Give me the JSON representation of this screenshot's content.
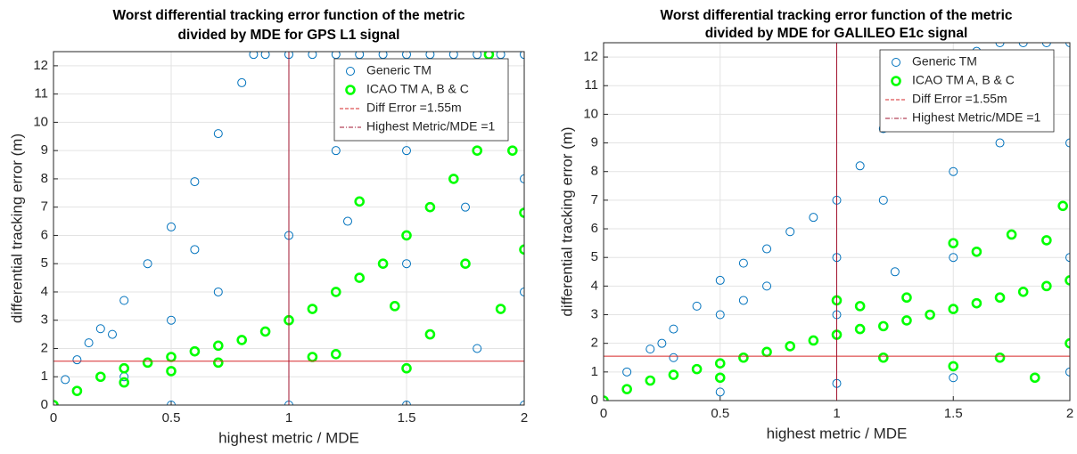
{
  "chart_data": [
    {
      "type": "scatter",
      "title": [
        "Worst differential tracking error function of the metric",
        "divided by MDE for GPS L1 signal"
      ],
      "xlabel": "highest metric / MDE",
      "ylabel": "differential tracking error (m)",
      "xlim": [
        0,
        2
      ],
      "ylim": [
        0,
        12.5
      ],
      "xticks": [
        0,
        0.5,
        1,
        1.5,
        2
      ],
      "yticks": [
        0,
        1,
        2,
        3,
        4,
        5,
        6,
        7,
        8,
        9,
        10,
        11,
        12
      ],
      "grid": true,
      "legend": "upper right",
      "series": [
        {
          "name": "Generic TM",
          "color": "#0072bd",
          "x": [
            0,
            0.05,
            0.1,
            0.15,
            0.2,
            0.3,
            0.4,
            0.5,
            0.6,
            0.7,
            0.8,
            0.85,
            0.9,
            1,
            1.1,
            1.2,
            1.3,
            1.4,
            1.5,
            1.6,
            1.7,
            1.8,
            1.9,
            2,
            2,
            2,
            2,
            1.5,
            1,
            0.5,
            0.5,
            1,
            1.5,
            1,
            1.5,
            1.8,
            0.3,
            0.7,
            1.2,
            1.7,
            0.25,
            0.6,
            1.25,
            1.75
          ],
          "y": [
            0,
            0.9,
            1.6,
            2.2,
            2.7,
            3.7,
            5,
            6.3,
            7.9,
            9.6,
            11.4,
            12.4,
            12.4,
            12.4,
            12.4,
            12.4,
            12.4,
            12.4,
            12.4,
            12.4,
            12.4,
            12.4,
            12.4,
            12.4,
            8,
            4,
            0,
            0,
            0,
            0,
            3,
            6,
            9,
            3,
            5,
            2,
            1,
            4,
            9,
            11,
            2.5,
            5.5,
            6.5,
            7
          ]
        },
        {
          "name": "ICAO TM A, B & C",
          "color": "#00ff00",
          "x": [
            0,
            0.1,
            0.2,
            0.3,
            0.4,
            0.5,
            0.6,
            0.7,
            0.8,
            0.9,
            1,
            1.1,
            1.2,
            1.3,
            1.4,
            1.5,
            1.6,
            1.7,
            1.8,
            1.85,
            1.3,
            1.5,
            1.6,
            1.9,
            2,
            2,
            1.95,
            1.1,
            1.2,
            0.5,
            0.7,
            0.3,
            1.45,
            1.75
          ],
          "y": [
            0,
            0.5,
            1,
            1.3,
            1.5,
            1.7,
            1.9,
            2.1,
            2.3,
            2.6,
            3,
            3.4,
            4,
            4.5,
            5,
            6,
            7,
            8,
            9,
            12.4,
            7.2,
            1.3,
            2.5,
            3.4,
            5.5,
            6.8,
            9,
            1.7,
            1.8,
            1.2,
            1.5,
            0.8,
            3.5,
            5
          ]
        }
      ],
      "hlines": [
        {
          "name": "Diff Error =1.55m",
          "value": 1.55,
          "color": "#d62728"
        }
      ],
      "vlines": [
        {
          "name": "Highest Metric/MDE =1",
          "value": 1,
          "color": "#a2142f"
        }
      ]
    },
    {
      "type": "scatter",
      "title": [
        "Worst differential tracking error function of the metric",
        "divided by MDE for GALILEO E1c signal"
      ],
      "xlabel": "highest metric / MDE",
      "ylabel": "differential tracking error (m)",
      "xlim": [
        0,
        2
      ],
      "ylim": [
        0,
        12.5
      ],
      "xticks": [
        0,
        0.5,
        1,
        1.5,
        2
      ],
      "yticks": [
        0,
        1,
        2,
        3,
        4,
        5,
        6,
        7,
        8,
        9,
        10,
        11,
        12
      ],
      "grid": true,
      "legend": "upper right",
      "series": [
        {
          "name": "Generic TM",
          "color": "#0072bd",
          "x": [
            0,
            0.1,
            0.2,
            0.3,
            0.4,
            0.5,
            0.6,
            0.7,
            0.8,
            0.9,
            1,
            1.1,
            1.2,
            1.3,
            1.4,
            1.5,
            1.6,
            1.7,
            1.8,
            1.9,
            2,
            2,
            2,
            2,
            1.5,
            1,
            0.5,
            0.5,
            1,
            1.5,
            1,
            1.5,
            1.8,
            0.3,
            0.7,
            1.2,
            1.7,
            0.25,
            0.6,
            1.25
          ],
          "y": [
            0,
            1,
            1.8,
            2.5,
            3.3,
            4.2,
            4.8,
            5.3,
            5.9,
            6.4,
            7,
            8.2,
            9.5,
            10.2,
            11,
            11.8,
            12.2,
            12.5,
            12.5,
            12.5,
            12.5,
            9,
            5,
            1,
            0.8,
            0.6,
            0.3,
            3,
            5,
            8,
            3,
            5,
            10,
            1.5,
            4,
            7,
            9,
            2,
            3.5,
            4.5
          ]
        },
        {
          "name": "ICAO TM A, B & C",
          "color": "#00ff00",
          "x": [
            0,
            0.1,
            0.2,
            0.3,
            0.4,
            0.5,
            0.6,
            0.7,
            0.8,
            0.9,
            1,
            1.1,
            1.2,
            1.3,
            1.4,
            1.5,
            1.6,
            1.7,
            1.8,
            1.9,
            2,
            1,
            1.1,
            1.3,
            1.5,
            1.6,
            1.75,
            1.9,
            1.97,
            2,
            1.5,
            1.7,
            1.85,
            0.5,
            1.2
          ],
          "y": [
            0,
            0.4,
            0.7,
            0.9,
            1.1,
            1.3,
            1.5,
            1.7,
            1.9,
            2.1,
            2.3,
            2.5,
            2.6,
            2.8,
            3,
            3.2,
            3.4,
            3.6,
            3.8,
            4,
            4.2,
            3.5,
            3.3,
            3.6,
            5.5,
            5.2,
            5.8,
            5.6,
            6.8,
            2,
            1.2,
            1.5,
            0.8,
            0.8,
            1.5
          ]
        }
      ],
      "hlines": [
        {
          "name": "Diff Error =1.55m",
          "value": 1.55,
          "color": "#d62728"
        }
      ],
      "vlines": [
        {
          "name": "Highest Metric/MDE =1",
          "value": 1,
          "color": "#a2142f"
        }
      ]
    }
  ]
}
